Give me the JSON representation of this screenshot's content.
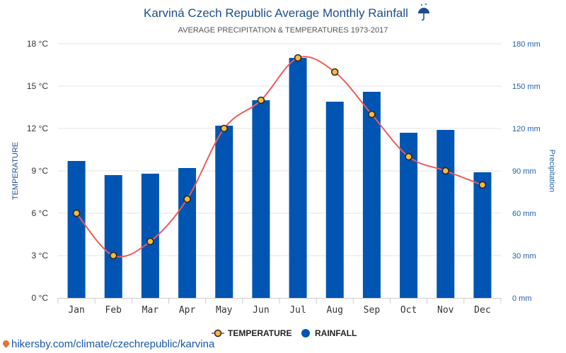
{
  "title": "Karviná Czech Republic Average Monthly Rainfall",
  "subtitle": "AVERAGE PRECIPITATION & TEMPERATURES 1973-2017",
  "credit": "hikersby.com/climate/czechrepublic/karvina",
  "colors": {
    "rainfall": "#0055b3",
    "temperature": "#ee5a5a",
    "marker": "#f5b942",
    "title": "#1f4e8c"
  },
  "chart_data": {
    "type": "bar",
    "categories": [
      "Jan",
      "Feb",
      "Mar",
      "Apr",
      "May",
      "Jun",
      "Jul",
      "Aug",
      "Sep",
      "Oct",
      "Nov",
      "Dec"
    ],
    "series": [
      {
        "name": "RAINFALL",
        "type": "bar",
        "axis": "right",
        "values": [
          97,
          87,
          88,
          92,
          122,
          140,
          170,
          139,
          146,
          117,
          119,
          89
        ]
      },
      {
        "name": "TEMPERATURE",
        "type": "line",
        "axis": "left",
        "values": [
          6,
          3,
          4,
          7,
          12,
          14,
          17,
          16,
          13,
          10,
          9,
          8
        ]
      }
    ],
    "ylabel_left": "TEMPERATURE",
    "ylabel_right": "Precipitation",
    "ylim_left": [
      0,
      18
    ],
    "ylim_right": [
      0,
      180
    ],
    "left_ticks": [
      "0 °C",
      "3 °C",
      "6 °C",
      "9 °C",
      "12 °C",
      "15 °C",
      "18 °C"
    ],
    "right_ticks": [
      "0 mm",
      "30 mm",
      "60 mm",
      "90 mm",
      "120 mm",
      "150 mm",
      "180 mm"
    ],
    "grid": true,
    "legend_position": "bottom-center"
  }
}
